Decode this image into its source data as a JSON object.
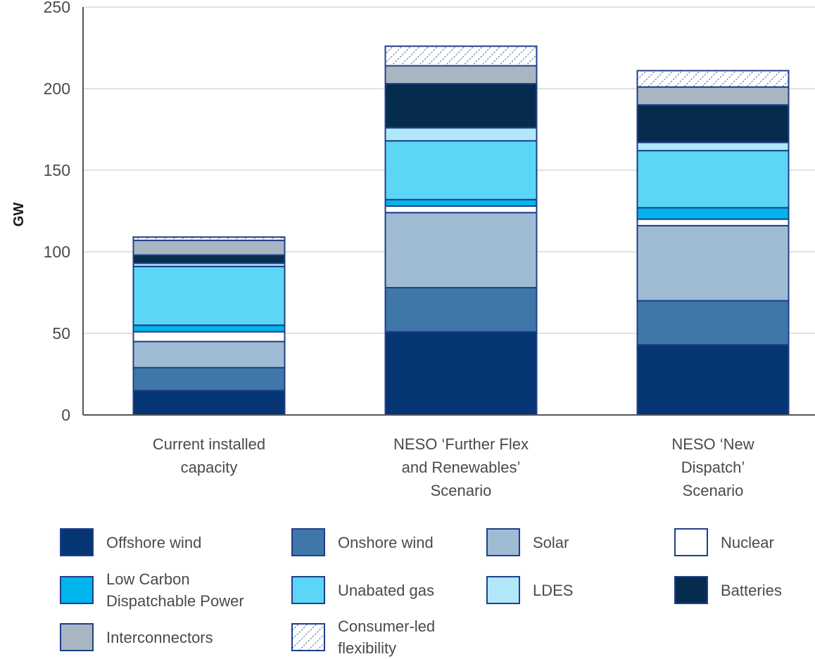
{
  "chart_data": {
    "type": "bar",
    "stacked": true,
    "ylabel": "GW",
    "ylim": [
      0,
      250
    ],
    "yticks": [
      0,
      50,
      100,
      150,
      200,
      250
    ],
    "grid": true,
    "legend_position": "bottom",
    "categories": [
      [
        "Current installed",
        "capacity"
      ],
      [
        "NESO ‘Further Flex",
        "and Renewables’",
        "Scenario"
      ],
      [
        "NESO ‘New",
        "Dispatch’",
        "Scenario"
      ]
    ],
    "series": [
      {
        "name": "Offshore wind",
        "legend_lines": [
          "Offshore wind"
        ],
        "color": "#063574",
        "values": [
          15,
          51,
          43
        ]
      },
      {
        "name": "Onshore wind",
        "legend_lines": [
          "Onshore wind"
        ],
        "color": "#3f78a8",
        "values": [
          14,
          27,
          27
        ]
      },
      {
        "name": "Solar",
        "legend_lines": [
          "Solar"
        ],
        "color": "#a0bcd5",
        "values": [
          16,
          46,
          46
        ]
      },
      {
        "name": "Nuclear",
        "legend_lines": [
          "Nuclear"
        ],
        "color": "#ffffff",
        "values": [
          6,
          4,
          4
        ]
      },
      {
        "name": "Low Carbon Dispatchable Power",
        "legend_lines": [
          "Low Carbon",
          "Dispatchable Power"
        ],
        "color": "#00b5ec",
        "values": [
          4,
          4,
          7
        ]
      },
      {
        "name": "Unabated gas",
        "legend_lines": [
          "Unabated gas"
        ],
        "color": "#5cd6f6",
        "values": [
          36,
          36,
          35
        ]
      },
      {
        "name": "LDES",
        "legend_lines": [
          "LDES"
        ],
        "color": "#b0e8fa",
        "values": [
          2,
          8,
          5
        ]
      },
      {
        "name": "Batteries",
        "legend_lines": [
          "Batteries"
        ],
        "color": "#062c4d",
        "values": [
          5,
          27,
          23
        ]
      },
      {
        "name": "Interconnectors",
        "legend_lines": [
          "Interconnectors"
        ],
        "color": "#a8b6c1",
        "values": [
          9,
          11,
          11
        ]
      },
      {
        "name": "Consumer-led flexibility",
        "legend_lines": [
          "Consumer-led",
          "flexibility"
        ],
        "color": "hatch",
        "values": [
          2,
          12,
          10
        ]
      }
    ]
  }
}
